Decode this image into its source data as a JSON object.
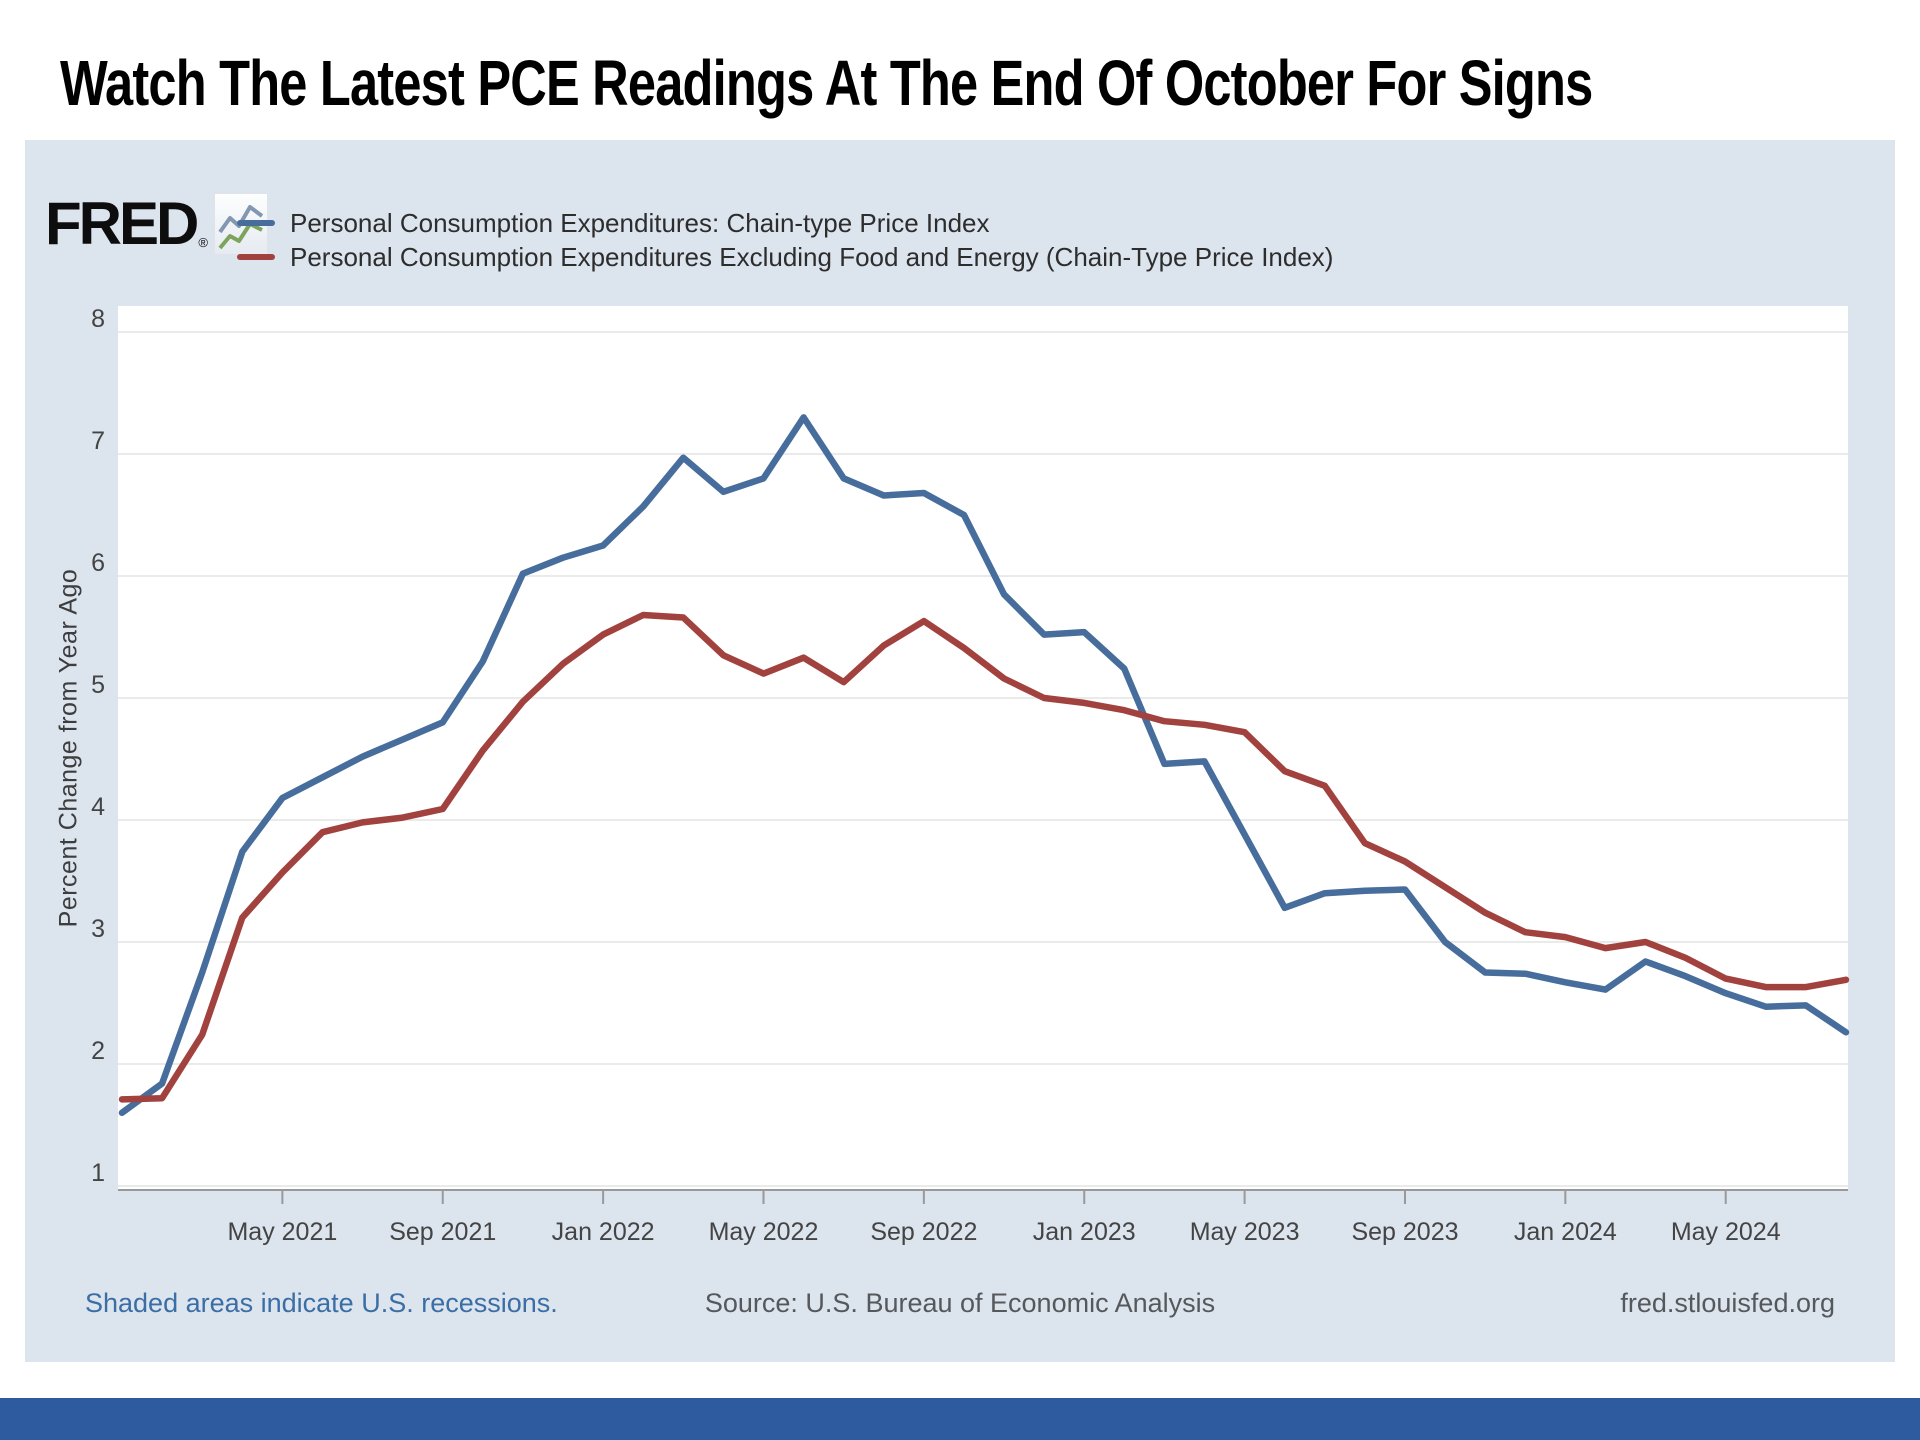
{
  "page": {
    "title": "Watch The Latest PCE Readings At The End Of October For Signs",
    "bottom_bar_color": "#2e5aa0"
  },
  "chart": {
    "brand": "FRED",
    "brand_reg": "®",
    "ylabel": "Percent Change from Year Ago",
    "footer": {
      "recessions_note": "Shaded areas indicate U.S. recessions.",
      "source": "Source: U.S. Bureau of Economic Analysis",
      "site": "fred.stlouisfed.org"
    },
    "colors": {
      "card_bg": "#dce4ee",
      "plot_bg": "#ffffff",
      "gridline": "#e4e4e4",
      "axis_line": "#999999",
      "tick_text": "#444444"
    }
  },
  "chart_data": {
    "type": "line",
    "title": "",
    "xlabel": "",
    "ylabel": "Percent Change from Year Ago",
    "ylim": [
      1,
      8
    ],
    "y_ticks": [
      1,
      2,
      3,
      4,
      5,
      6,
      7,
      8
    ],
    "grid": "horizontal",
    "legend_position": "top-left",
    "x_unit": "month",
    "x_range": "Jan 2021 - Aug 2024",
    "x_tick_indices": [
      4,
      8,
      12,
      16,
      20,
      24,
      28,
      32,
      36,
      40
    ],
    "x_tick_labels": [
      "May 2021",
      "Sep 2021",
      "Jan 2022",
      "May 2022",
      "Sep 2022",
      "Jan 2023",
      "May 2023",
      "Sep 2023",
      "Jan 2024",
      "May 2024"
    ],
    "series": [
      {
        "name": "Personal Consumption Expenditures: Chain-type Price Index",
        "color": "#466d9c",
        "values": [
          1.6,
          1.84,
          2.75,
          3.74,
          4.18,
          4.35,
          4.52,
          4.66,
          4.8,
          5.3,
          6.02,
          6.15,
          6.25,
          6.57,
          6.97,
          6.69,
          6.8,
          7.3,
          6.8,
          6.66,
          6.68,
          6.5,
          5.85,
          5.52,
          5.54,
          5.24,
          4.46,
          4.48,
          3.88,
          3.28,
          3.4,
          3.42,
          3.43,
          3.0,
          2.75,
          2.74,
          2.67,
          2.61,
          2.84,
          2.72,
          2.58,
          2.47,
          2.48,
          2.26
        ]
      },
      {
        "name": "Personal Consumption Expenditures Excluding Food and Energy (Chain-Type Price Index)",
        "color": "#a2423f",
        "values": [
          1.71,
          1.72,
          2.24,
          3.2,
          3.57,
          3.9,
          3.98,
          4.02,
          4.09,
          4.57,
          4.97,
          5.28,
          5.52,
          5.68,
          5.66,
          5.35,
          5.2,
          5.33,
          5.13,
          5.43,
          5.63,
          5.41,
          5.16,
          5.0,
          4.96,
          4.9,
          4.81,
          4.78,
          4.72,
          4.4,
          4.28,
          3.81,
          3.66,
          3.45,
          3.24,
          3.08,
          3.04,
          2.95,
          3.0,
          2.87,
          2.7,
          2.63,
          2.63,
          2.69
        ]
      }
    ]
  }
}
